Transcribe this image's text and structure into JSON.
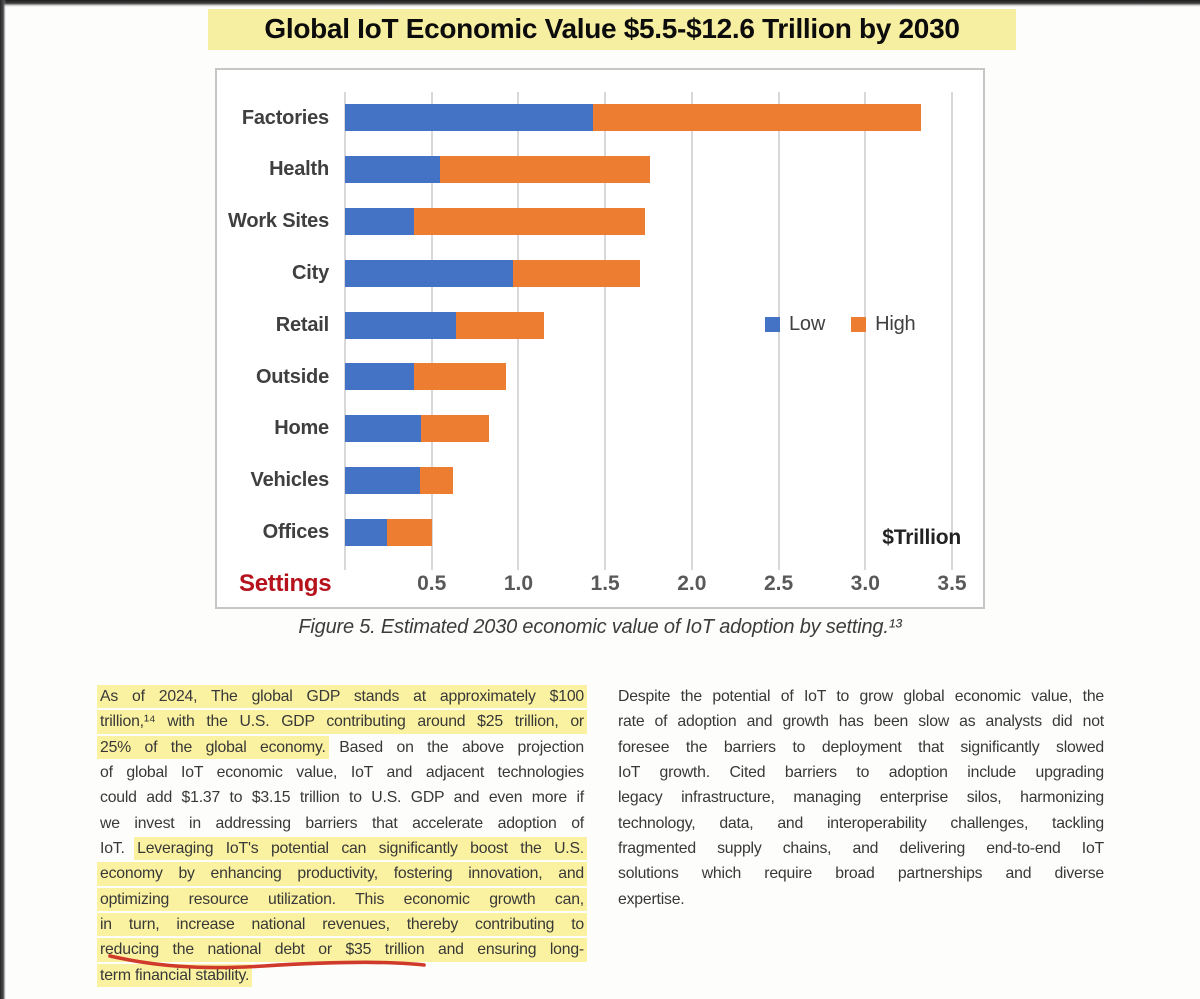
{
  "title": {
    "text": "Global IoT Economic Value $5.5-$12.6 Trillion by 2030",
    "highlight_color": "#f6eea0"
  },
  "chart_data": {
    "type": "bar",
    "orientation": "horizontal",
    "stacked": true,
    "title": "Global IoT Economic Value $5.5-$12.6 Trillion by 2030",
    "categories": [
      "Factories",
      "Health",
      "Work Sites",
      "City",
      "Retail",
      "Outside",
      "Home",
      "Vehicles",
      "Offices"
    ],
    "series": [
      {
        "name": "Low",
        "color": "#4472C4",
        "values": [
          1.43,
          0.55,
          0.4,
          0.97,
          0.64,
          0.4,
          0.44,
          0.43,
          0.24
        ]
      },
      {
        "name": "High",
        "color": "#ED7D31",
        "values": [
          1.89,
          1.21,
          1.33,
          0.73,
          0.51,
          0.53,
          0.39,
          0.19,
          0.26
        ]
      }
    ],
    "totals": [
      3.32,
      1.76,
      1.73,
      1.7,
      1.15,
      0.93,
      0.83,
      0.62,
      0.5
    ],
    "x_axis": {
      "min": 0,
      "max": 3.5,
      "tick_step": 0.5,
      "tick_labels": [
        "0.5",
        "1.0",
        "1.5",
        "2.0",
        "2.5",
        "3.0",
        "3.5"
      ],
      "unit_label": "$Trillion"
    },
    "category_axis_title": {
      "text": "Settings",
      "color": "#b5121b"
    },
    "legend": {
      "position": "middle-right",
      "entries": [
        {
          "label": "Low",
          "color": "#4472C4"
        },
        {
          "label": "High",
          "color": "#ED7D31"
        }
      ]
    },
    "gridlines": true,
    "gridline_color": "#d8d8d8"
  },
  "caption": {
    "text": "Figure 5. Estimated 2030 economic value of IoT adoption by setting.¹³"
  },
  "body": {
    "left_column": {
      "lines": [
        {
          "segments": [
            {
              "text": "As of 2024, The global GDP stands at approximately $100",
              "highlight": true
            }
          ]
        },
        {
          "segments": [
            {
              "text": "trillion,¹⁴ with the U.S. GDP contributing around $25 trillion, or",
              "highlight": true
            }
          ]
        },
        {
          "segments": [
            {
              "text": "25% of the global economy.",
              "highlight": true
            },
            {
              "text": " Based on the above projection",
              "highlight": false
            }
          ]
        },
        {
          "segments": [
            {
              "text": "of global IoT economic value, IoT and adjacent technologies",
              "highlight": false
            }
          ]
        },
        {
          "segments": [
            {
              "text": "could add $1.37 to $3.15 trillion to U.S. GDP and even more if",
              "highlight": false
            }
          ]
        },
        {
          "segments": [
            {
              "text": "we invest in addressing barriers that accelerate adoption of",
              "highlight": false
            }
          ]
        },
        {
          "segments": [
            {
              "text": "IoT. ",
              "highlight": false
            },
            {
              "text": "Leveraging IoT's potential can significantly boost the U.S.",
              "highlight": true
            }
          ]
        },
        {
          "segments": [
            {
              "text": "economy by enhancing productivity, fostering innovation, and",
              "highlight": true
            }
          ]
        },
        {
          "segments": [
            {
              "text": "optimizing resource utilization. This economic growth can,",
              "highlight": true
            }
          ]
        },
        {
          "segments": [
            {
              "text": "in turn, increase national revenues, thereby contributing to",
              "highlight": true
            }
          ]
        },
        {
          "segments": [
            {
              "text": "reducing the national debt or $35 trillion and ensuring long-",
              "highlight": true
            }
          ]
        },
        {
          "segments": [
            {
              "text": "term financial stability.",
              "highlight": true
            }
          ]
        }
      ],
      "red_underline": {
        "under_text": "reducing the national debt or $35 trillion",
        "color": "#cf3a2a"
      }
    },
    "right_column": {
      "lines": [
        {
          "segments": [
            {
              "text": "Despite the potential of IoT to grow global economic value, the",
              "highlight": false
            }
          ]
        },
        {
          "segments": [
            {
              "text": "rate of adoption and growth has been slow as analysts did not",
              "highlight": false
            }
          ]
        },
        {
          "segments": [
            {
              "text": "foresee the barriers to deployment that significantly slowed",
              "highlight": false
            }
          ]
        },
        {
          "segments": [
            {
              "text": "IoT growth. Cited barriers to adoption include upgrading",
              "highlight": false
            }
          ]
        },
        {
          "segments": [
            {
              "text": "legacy infrastructure, managing enterprise silos, harmonizing",
              "highlight": false
            }
          ]
        },
        {
          "segments": [
            {
              "text": "technology, data, and interoperability challenges, tackling",
              "highlight": false
            }
          ]
        },
        {
          "segments": [
            {
              "text": "fragmented supply chains, and delivering end-to-end IoT",
              "highlight": false
            }
          ]
        },
        {
          "segments": [
            {
              "text": "solutions which require broad partnerships and diverse",
              "highlight": false
            }
          ]
        },
        {
          "segments": [
            {
              "text": "expertise.",
              "highlight": false
            }
          ]
        }
      ]
    }
  },
  "colors": {
    "low_blue": "#4472C4",
    "high_orange": "#ED7D31",
    "body_highlight": "#faf2a0",
    "title_highlight": "#f6eea0",
    "settings_red": "#b5121b",
    "underline_red": "#cf3a2a"
  }
}
